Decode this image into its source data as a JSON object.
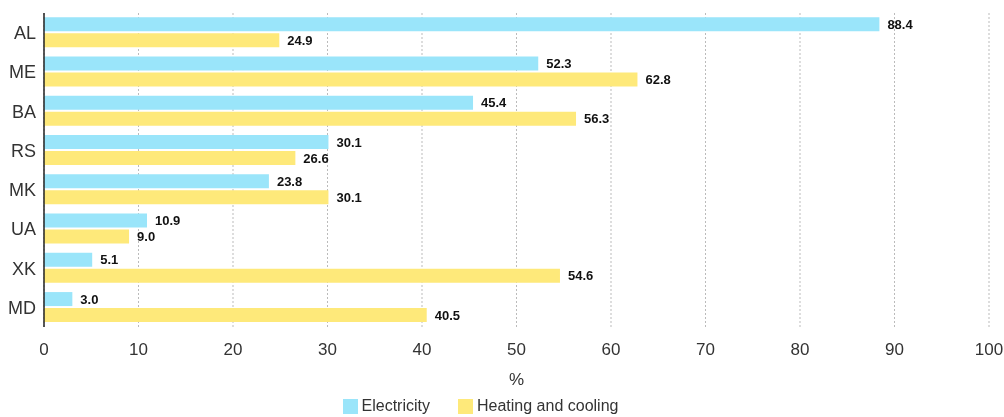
{
  "chart_data": {
    "type": "bar",
    "orientation": "horizontal",
    "categories": [
      "AL",
      "ME",
      "BA",
      "RS",
      "MK",
      "UA",
      "XK",
      "MD"
    ],
    "series": [
      {
        "name": "Electricity",
        "color": "#9ae5fa",
        "values": [
          88.4,
          52.3,
          45.4,
          30.1,
          23.8,
          10.9,
          5.1,
          3.0
        ],
        "value_labels": [
          "88.4",
          "52.3",
          "45.4",
          "30.1",
          "23.8",
          "10.9",
          "5.1",
          "3.0"
        ]
      },
      {
        "name": "Heating and cooling",
        "color": "#fee97a",
        "values": [
          24.9,
          62.8,
          56.3,
          26.6,
          30.1,
          9.0,
          54.6,
          40.5
        ],
        "value_labels": [
          "24.9",
          "62.8",
          "56.3",
          "26.6",
          "30.1",
          "9.0",
          "54.6",
          "40.5"
        ]
      }
    ],
    "xlabel": "%",
    "xlim": [
      0,
      100
    ],
    "xticks": [
      0,
      10,
      20,
      30,
      40,
      50,
      60,
      70,
      80,
      90,
      100
    ],
    "grid": "x",
    "legend": "bottom"
  }
}
